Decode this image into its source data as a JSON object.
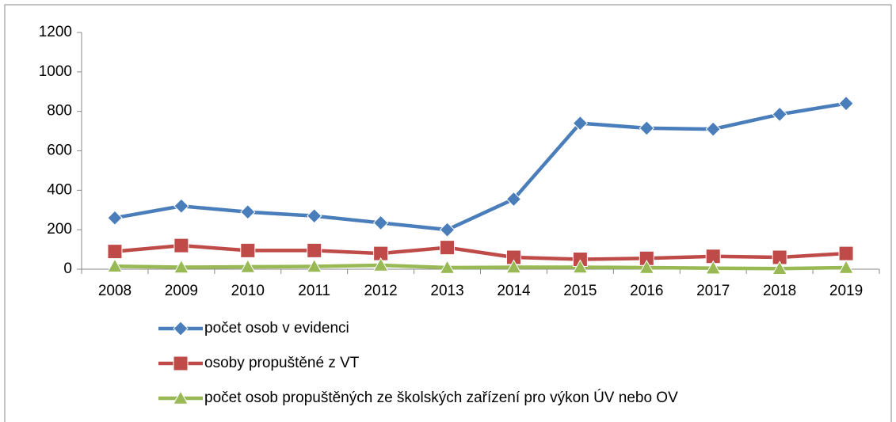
{
  "chart_data": {
    "type": "line",
    "categories": [
      "2008",
      "2009",
      "2010",
      "2011",
      "2012",
      "2013",
      "2014",
      "2015",
      "2016",
      "2017",
      "2018",
      "2019"
    ],
    "series": [
      {
        "name": "počet osob v evidenci",
        "color": "#4a7ebb",
        "marker": "diamond",
        "values": [
          260,
          320,
          290,
          270,
          235,
          200,
          355,
          740,
          715,
          710,
          785,
          840
        ]
      },
      {
        "name": "osoby propuštěné z VT",
        "color": "#be4b48",
        "marker": "square",
        "values": [
          90,
          120,
          95,
          95,
          80,
          110,
          60,
          50,
          55,
          65,
          60,
          80
        ]
      },
      {
        "name": "počet osob propuštěných ze školských zařízení pro výkon ÚV nebo OV",
        "color": "#98b954",
        "marker": "triangle",
        "values": [
          15,
          10,
          12,
          14,
          20,
          8,
          10,
          10,
          8,
          5,
          3,
          8
        ]
      }
    ],
    "ylim": [
      0,
      1200
    ],
    "yticks": [
      0,
      200,
      400,
      600,
      800,
      1000,
      1200
    ],
    "grid": false,
    "legend": "bottom"
  }
}
